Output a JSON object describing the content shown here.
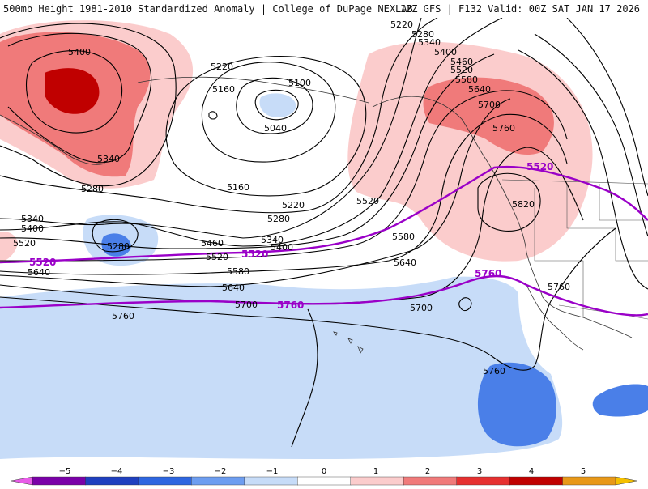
{
  "header": {
    "title": "500mb Height 1981-2010 Standardized Anomaly | College of DuPage NEXLAB",
    "run_info": "12Z GFS | F132 Valid: 00Z SAT JAN 17 2026"
  },
  "contours": {
    "black_labels": [
      {
        "text": "5400"
      },
      {
        "text": "5340"
      },
      {
        "text": "5280"
      },
      {
        "text": "5220"
      },
      {
        "text": "5160"
      },
      {
        "text": "5100"
      },
      {
        "text": "5040"
      },
      {
        "text": "5160"
      },
      {
        "text": "5220"
      },
      {
        "text": "5280"
      },
      {
        "text": "5340"
      },
      {
        "text": "5400"
      },
      {
        "text": "5460"
      },
      {
        "text": "5520"
      },
      {
        "text": "5580"
      },
      {
        "text": "5640"
      },
      {
        "text": "5700"
      },
      {
        "text": "5760"
      },
      {
        "text": "5340"
      },
      {
        "text": "5400"
      },
      {
        "text": "5520"
      },
      {
        "text": "5640"
      },
      {
        "text": "5280"
      },
      {
        "text": "5220"
      },
      {
        "text": "5280"
      },
      {
        "text": "5340"
      },
      {
        "text": "5400"
      },
      {
        "text": "5460"
      },
      {
        "text": "5520"
      },
      {
        "text": "5580"
      },
      {
        "text": "5640"
      },
      {
        "text": "5700"
      },
      {
        "text": "5760"
      },
      {
        "text": "5820"
      },
      {
        "text": "5520"
      },
      {
        "text": "5580"
      },
      {
        "text": "5640"
      },
      {
        "text": "5700"
      },
      {
        "text": "5760"
      },
      {
        "text": "5760"
      }
    ],
    "purple_labels": [
      {
        "text": "5520"
      },
      {
        "text": "5520"
      },
      {
        "text": "5520"
      },
      {
        "text": "5760"
      },
      {
        "text": "5760"
      }
    ]
  },
  "colorbar": {
    "ticks": [
      "−5",
      "−4",
      "−3",
      "−2",
      "−1",
      "0",
      "1",
      "2",
      "3",
      "4",
      "5"
    ],
    "colors": [
      "#c020c0",
      "#7a00a8",
      "#1f3fbf",
      "#2e66e0",
      "#6d9df0",
      "#c7dcf8",
      "#ffffff",
      "#fbcccc",
      "#f07a7a",
      "#e63030",
      "#c00000",
      "#e89818",
      "#f5c000"
    ]
  },
  "palette": {
    "anom_pos_weak": "#fbcccc",
    "anom_pos_mid": "#f07a7a",
    "anom_pos_strong": "#c00000",
    "anom_neg_weak": "#c7dcf8",
    "anom_neg_mid": "#4a7fe8",
    "height_contour": "#000000",
    "ref_contour": "#9a00c8"
  }
}
